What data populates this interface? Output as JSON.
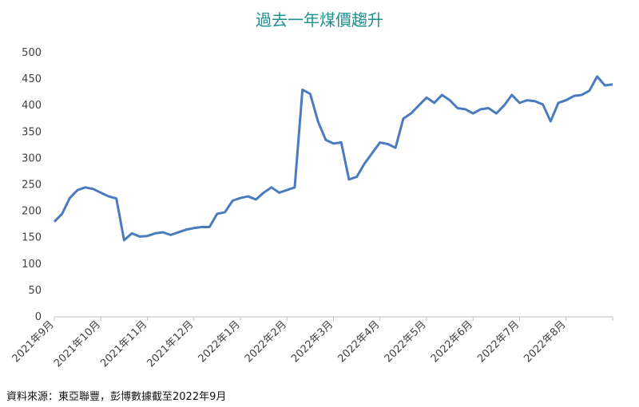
{
  "chart_data": {
    "type": "line",
    "title": "過去一年煤價趨升",
    "categories": [
      "2021年9月",
      null,
      null,
      null,
      null,
      null,
      "2021年10月",
      null,
      null,
      null,
      null,
      null,
      "2021年11月",
      null,
      null,
      null,
      null,
      null,
      "2021年12月",
      null,
      null,
      null,
      null,
      null,
      "2022年1月",
      null,
      null,
      null,
      null,
      null,
      "2022年2月",
      null,
      null,
      null,
      null,
      null,
      "2022年3月",
      null,
      null,
      null,
      null,
      null,
      "2022年4月",
      null,
      null,
      null,
      null,
      null,
      "2022年5月",
      null,
      null,
      null,
      null,
      null,
      "2022年6月",
      null,
      null,
      null,
      null,
      null,
      "2022年7月",
      null,
      null,
      null,
      null,
      null,
      "2022年8月",
      null,
      null,
      null,
      null,
      null,
      null
    ],
    "series": [
      {
        "name": "煤價",
        "color": "#4a7bbf",
        "values": [
          180,
          195,
          225,
          240,
          245,
          242,
          235,
          228,
          224,
          145,
          158,
          152,
          153,
          158,
          160,
          155,
          160,
          165,
          168,
          170,
          170,
          195,
          198,
          220,
          225,
          228,
          222,
          235,
          245,
          235,
          240,
          245,
          430,
          422,
          370,
          335,
          328,
          330,
          260,
          265,
          290,
          310,
          330,
          327,
          320,
          375,
          385,
          400,
          415,
          405,
          420,
          410,
          395,
          393,
          385,
          393,
          395,
          385,
          400,
          420,
          405,
          410,
          408,
          402,
          370,
          405,
          410,
          418,
          420,
          428,
          455,
          438,
          440
        ]
      }
    ],
    "ylim": [
      0,
      500
    ],
    "yticks": [
      0,
      50,
      100,
      150,
      200,
      250,
      300,
      350,
      400,
      450,
      500
    ],
    "source": "資料來源：東亞聯豐，彭博數據截至2022年9月"
  }
}
